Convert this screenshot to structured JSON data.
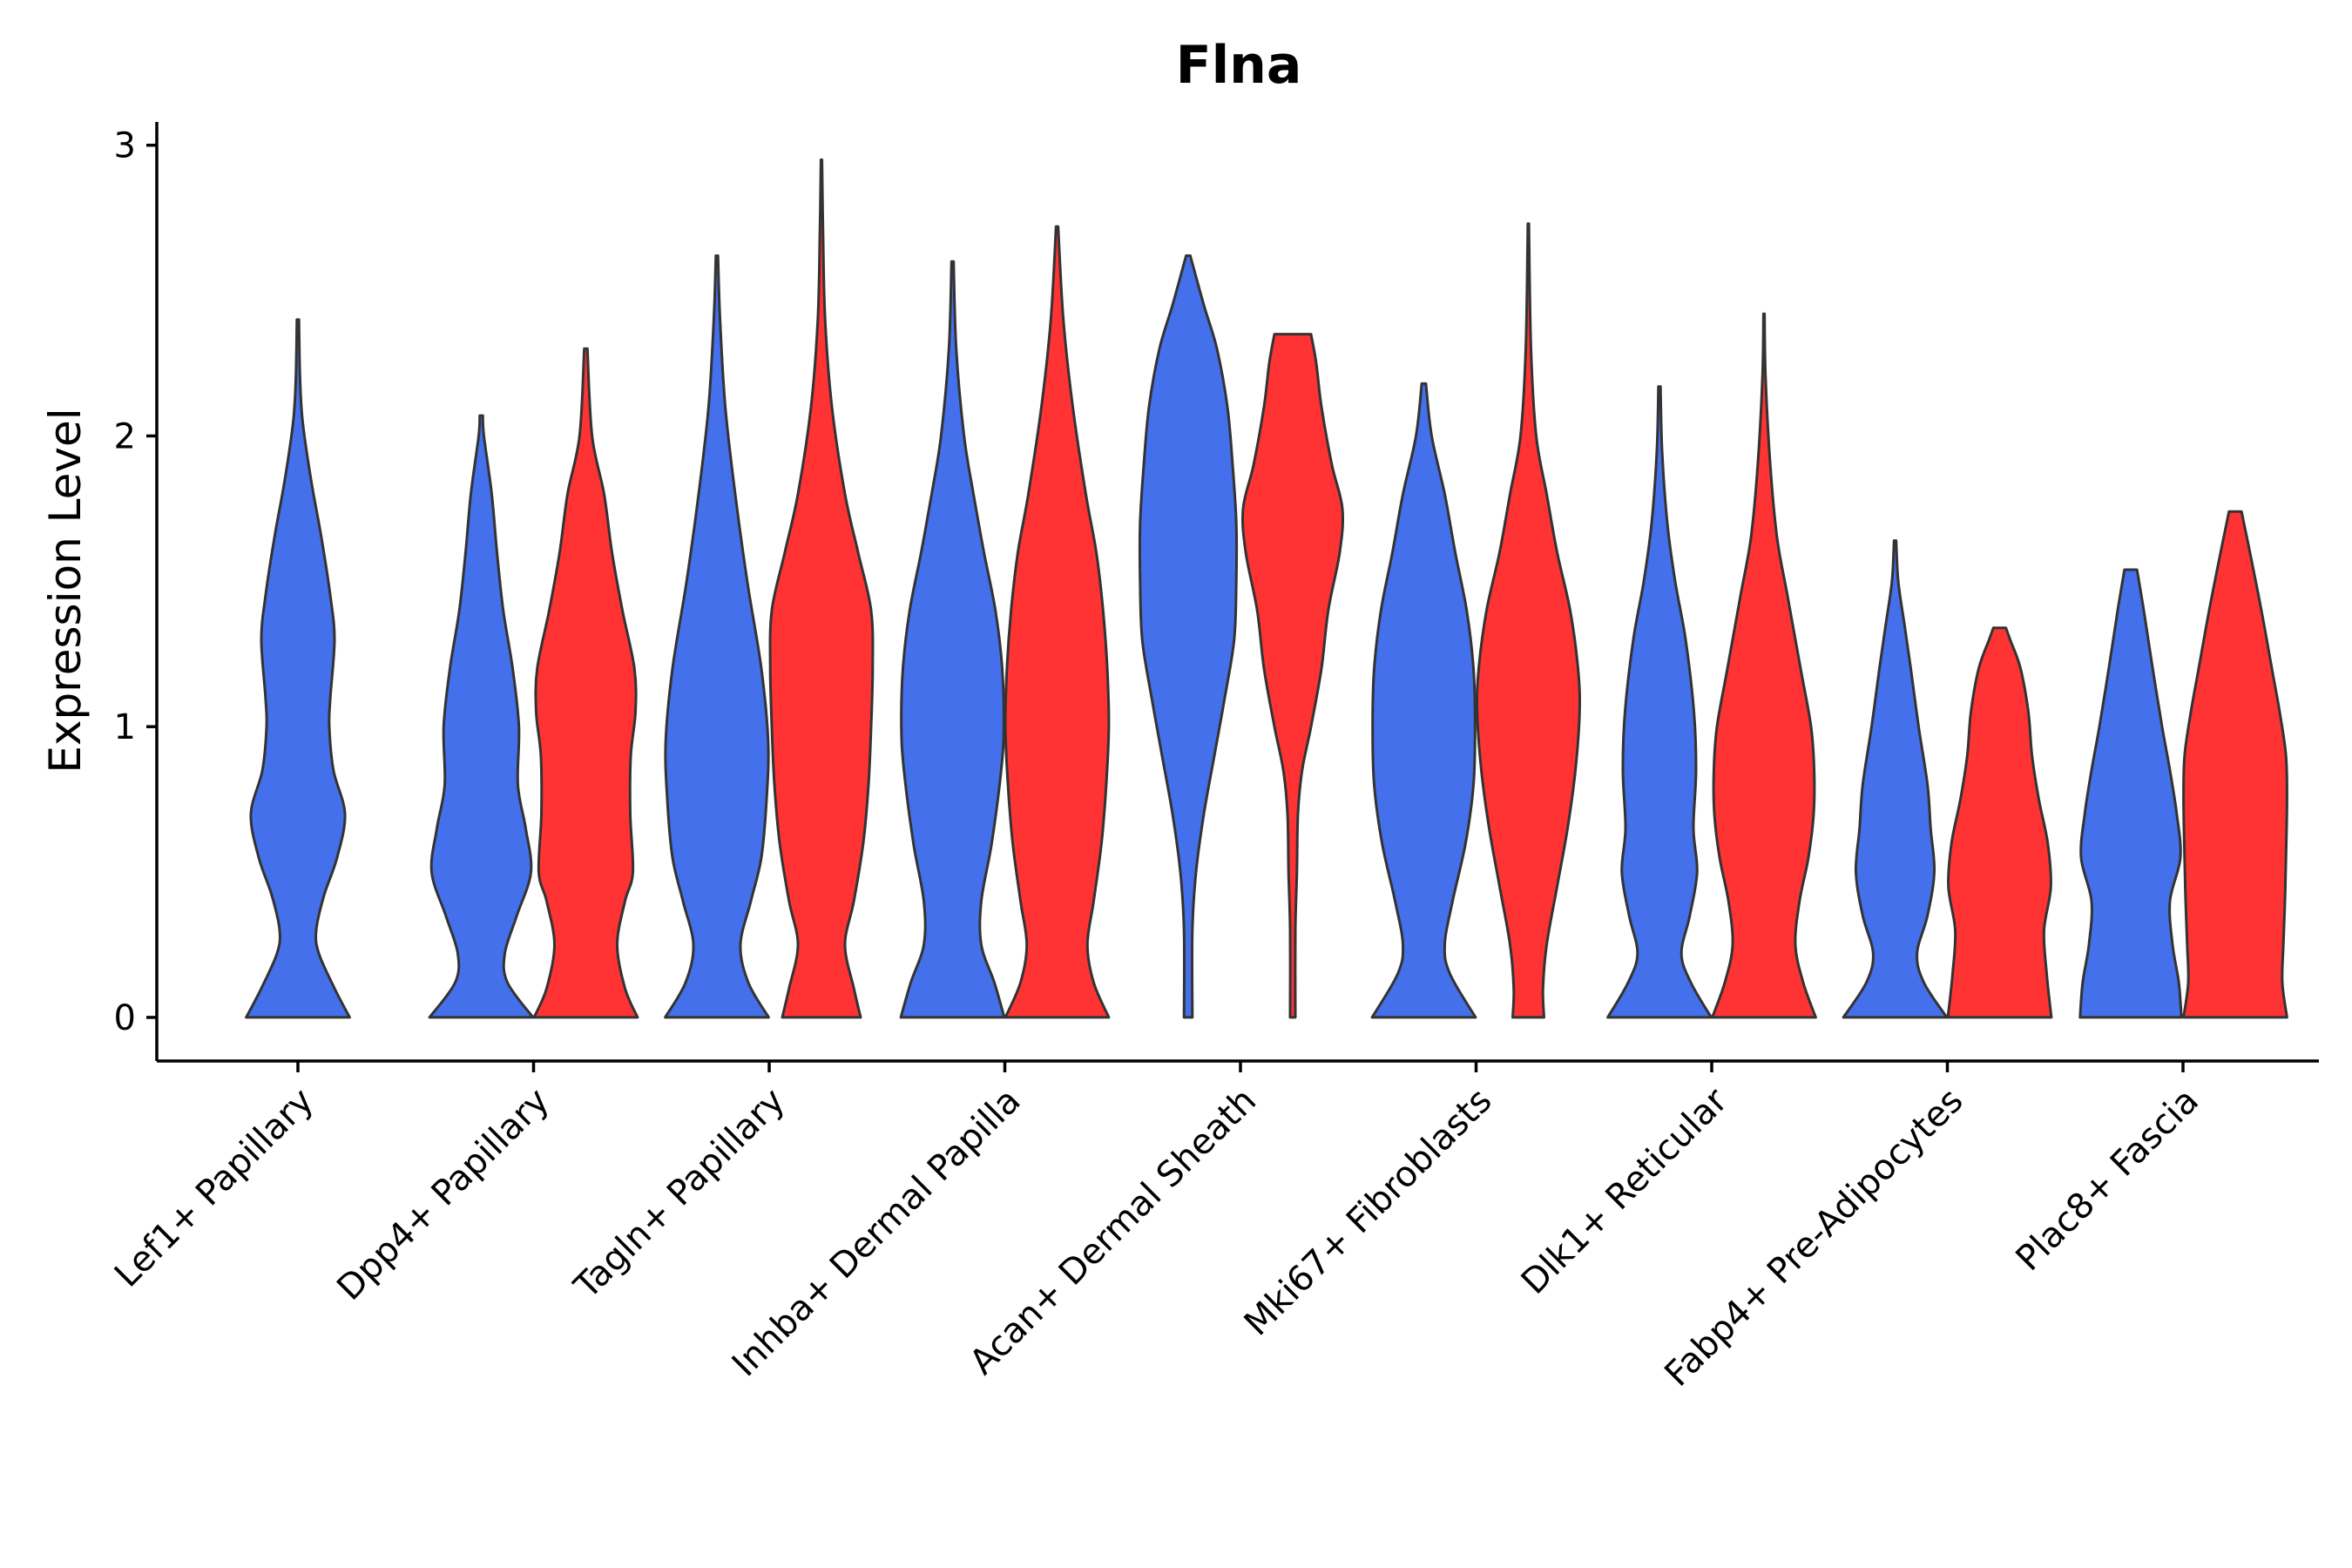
{
  "chart_data": {
    "type": "violin",
    "title": "Flna",
    "xlabel": "",
    "ylabel": "Expression Level",
    "ylim": [
      -0.15,
      3.08
    ],
    "yticks": [
      0,
      1,
      2,
      3
    ],
    "legend": "none",
    "grid": false,
    "colors": {
      "group1": "#4470EB",
      "group2": "#FF3333",
      "outline": "#333333"
    },
    "categories": [
      "Lef1+ Papillary",
      "Dpp4+ Papillary",
      "Tagln+ Papillary",
      "Inhba+ Dermal Papilla",
      "Acan+ Dermal Sheath",
      "Mki67+ Fibroblasts",
      "Dlk1+ Reticular",
      "Fabp4+ Pre-Adipocytes",
      "Plac8+ Fascia"
    ],
    "violins": [
      {
        "category": "Lef1+ Papillary",
        "group": "group1",
        "profile": [
          [
            0,
            0.99
          ],
          [
            0.1,
            0.7
          ],
          [
            0.22,
            0.4
          ],
          [
            0.3,
            0.35
          ],
          [
            0.42,
            0.5
          ],
          [
            0.55,
            0.75
          ],
          [
            0.7,
            0.9
          ],
          [
            0.85,
            0.68
          ],
          [
            1.0,
            0.6
          ],
          [
            1.1,
            0.62
          ],
          [
            1.3,
            0.7
          ],
          [
            1.45,
            0.62
          ],
          [
            1.65,
            0.45
          ],
          [
            1.85,
            0.25
          ],
          [
            2.05,
            0.09
          ],
          [
            2.2,
            0.04
          ],
          [
            2.4,
            0.02
          ]
        ]
      },
      {
        "category": "Dpp4+ Papillary",
        "group": "group1",
        "profile": [
          [
            0,
            0.99
          ],
          [
            0.12,
            0.5
          ],
          [
            0.22,
            0.45
          ],
          [
            0.35,
            0.68
          ],
          [
            0.5,
            0.95
          ],
          [
            0.65,
            0.85
          ],
          [
            0.8,
            0.7
          ],
          [
            1.0,
            0.72
          ],
          [
            1.2,
            0.6
          ],
          [
            1.4,
            0.42
          ],
          [
            1.6,
            0.3
          ],
          [
            1.8,
            0.2
          ],
          [
            2.0,
            0.05
          ],
          [
            2.07,
            0.03
          ]
        ]
      },
      {
        "category": "Dpp4+ Papillary",
        "group": "group2",
        "profile": [
          [
            0,
            0.99
          ],
          [
            0.1,
            0.75
          ],
          [
            0.25,
            0.6
          ],
          [
            0.4,
            0.75
          ],
          [
            0.5,
            0.9
          ],
          [
            0.7,
            0.85
          ],
          [
            0.9,
            0.86
          ],
          [
            1.05,
            0.95
          ],
          [
            1.2,
            0.93
          ],
          [
            1.4,
            0.7
          ],
          [
            1.6,
            0.5
          ],
          [
            1.8,
            0.35
          ],
          [
            2.0,
            0.12
          ],
          [
            2.3,
            0.03
          ]
        ]
      },
      {
        "category": "Tagln+ Papillary",
        "group": "group1",
        "profile": [
          [
            0,
            0.99
          ],
          [
            0.12,
            0.6
          ],
          [
            0.25,
            0.45
          ],
          [
            0.4,
            0.65
          ],
          [
            0.55,
            0.85
          ],
          [
            0.75,
            0.95
          ],
          [
            0.95,
            0.98
          ],
          [
            1.2,
            0.85
          ],
          [
            1.5,
            0.58
          ],
          [
            1.8,
            0.35
          ],
          [
            2.1,
            0.16
          ],
          [
            2.4,
            0.06
          ],
          [
            2.62,
            0.02
          ]
        ]
      },
      {
        "category": "Tagln+ Papillary",
        "group": "group2",
        "profile": [
          [
            0,
            0.75
          ],
          [
            0.1,
            0.62
          ],
          [
            0.25,
            0.45
          ],
          [
            0.4,
            0.62
          ],
          [
            0.6,
            0.8
          ],
          [
            0.8,
            0.9
          ],
          [
            1.0,
            0.95
          ],
          [
            1.2,
            0.98
          ],
          [
            1.4,
            0.95
          ],
          [
            1.6,
            0.7
          ],
          [
            1.8,
            0.45
          ],
          [
            2.1,
            0.2
          ],
          [
            2.4,
            0.07
          ],
          [
            2.7,
            0.03
          ],
          [
            2.95,
            0.01
          ]
        ]
      },
      {
        "category": "Inhba+ Dermal Papilla",
        "group": "group1",
        "profile": [
          [
            0,
            0.99
          ],
          [
            0.12,
            0.8
          ],
          [
            0.25,
            0.55
          ],
          [
            0.4,
            0.55
          ],
          [
            0.6,
            0.75
          ],
          [
            0.85,
            0.93
          ],
          [
            1.0,
            0.98
          ],
          [
            1.2,
            0.95
          ],
          [
            1.4,
            0.82
          ],
          [
            1.6,
            0.6
          ],
          [
            1.8,
            0.4
          ],
          [
            2.0,
            0.22
          ],
          [
            2.3,
            0.07
          ],
          [
            2.6,
            0.02
          ]
        ]
      },
      {
        "category": "Inhba+ Dermal Papilla",
        "group": "group2",
        "profile": [
          [
            0,
            0.99
          ],
          [
            0.12,
            0.7
          ],
          [
            0.25,
            0.58
          ],
          [
            0.4,
            0.7
          ],
          [
            0.6,
            0.85
          ],
          [
            0.8,
            0.94
          ],
          [
            1.0,
            0.99
          ],
          [
            1.2,
            0.96
          ],
          [
            1.4,
            0.88
          ],
          [
            1.6,
            0.75
          ],
          [
            1.8,
            0.55
          ],
          [
            2.1,
            0.3
          ],
          [
            2.4,
            0.12
          ],
          [
            2.72,
            0.02
          ]
        ]
      },
      {
        "category": "Acan+ Dermal Sheath",
        "group": "group1",
        "profile": [
          [
            0,
            0.08
          ],
          [
            0.3,
            0.08
          ],
          [
            0.5,
            0.15
          ],
          [
            0.7,
            0.3
          ],
          [
            0.9,
            0.5
          ],
          [
            1.1,
            0.7
          ],
          [
            1.3,
            0.88
          ],
          [
            1.5,
            0.92
          ],
          [
            1.7,
            0.92
          ],
          [
            1.9,
            0.85
          ],
          [
            2.1,
            0.75
          ],
          [
            2.3,
            0.55
          ],
          [
            2.45,
            0.3
          ],
          [
            2.62,
            0.04
          ]
        ]
      },
      {
        "category": "Acan+ Dermal Sheath",
        "group": "group2",
        "profile": [
          [
            0,
            0.05
          ],
          [
            0.3,
            0.05
          ],
          [
            0.5,
            0.08
          ],
          [
            0.7,
            0.1
          ],
          [
            0.85,
            0.18
          ],
          [
            1.0,
            0.35
          ],
          [
            1.2,
            0.55
          ],
          [
            1.4,
            0.68
          ],
          [
            1.6,
            0.9
          ],
          [
            1.75,
            0.95
          ],
          [
            1.9,
            0.75
          ],
          [
            2.1,
            0.55
          ],
          [
            2.25,
            0.45
          ],
          [
            2.35,
            0.35
          ]
        ]
      },
      {
        "category": "Mki67+ Fibroblasts",
        "group": "group1",
        "profile": [
          [
            0,
            0.99
          ],
          [
            0.15,
            0.5
          ],
          [
            0.25,
            0.4
          ],
          [
            0.4,
            0.55
          ],
          [
            0.6,
            0.8
          ],
          [
            0.8,
            0.95
          ],
          [
            1.0,
            0.98
          ],
          [
            1.2,
            0.95
          ],
          [
            1.4,
            0.82
          ],
          [
            1.6,
            0.6
          ],
          [
            1.8,
            0.4
          ],
          [
            2.0,
            0.15
          ],
          [
            2.18,
            0.04
          ]
        ]
      },
      {
        "category": "Mki67+ Fibroblasts",
        "group": "group2",
        "profile": [
          [
            0,
            0.3
          ],
          [
            0.1,
            0.28
          ],
          [
            0.25,
            0.35
          ],
          [
            0.45,
            0.55
          ],
          [
            0.65,
            0.75
          ],
          [
            0.85,
            0.9
          ],
          [
            1.05,
            0.98
          ],
          [
            1.2,
            0.95
          ],
          [
            1.4,
            0.8
          ],
          [
            1.6,
            0.55
          ],
          [
            1.8,
            0.35
          ],
          [
            2.0,
            0.15
          ],
          [
            2.3,
            0.05
          ],
          [
            2.73,
            0.01
          ]
        ]
      },
      {
        "category": "Dlk1+ Reticular",
        "group": "group1",
        "profile": [
          [
            0,
            0.99
          ],
          [
            0.12,
            0.6
          ],
          [
            0.22,
            0.42
          ],
          [
            0.35,
            0.58
          ],
          [
            0.5,
            0.72
          ],
          [
            0.65,
            0.65
          ],
          [
            0.85,
            0.7
          ],
          [
            1.05,
            0.66
          ],
          [
            1.3,
            0.5
          ],
          [
            1.5,
            0.3
          ],
          [
            1.7,
            0.15
          ],
          [
            1.95,
            0.05
          ],
          [
            2.17,
            0.02
          ]
        ]
      },
      {
        "category": "Dlk1+ Reticular",
        "group": "group2",
        "profile": [
          [
            0,
            0.99
          ],
          [
            0.12,
            0.75
          ],
          [
            0.25,
            0.6
          ],
          [
            0.4,
            0.68
          ],
          [
            0.55,
            0.85
          ],
          [
            0.7,
            0.95
          ],
          [
            0.85,
            0.96
          ],
          [
            1.0,
            0.9
          ],
          [
            1.2,
            0.7
          ],
          [
            1.45,
            0.45
          ],
          [
            1.65,
            0.25
          ],
          [
            1.9,
            0.12
          ],
          [
            2.2,
            0.03
          ],
          [
            2.42,
            0.01
          ]
        ]
      },
      {
        "category": "Fabp4+ Pre-Adipocytes",
        "group": "group1",
        "profile": [
          [
            0,
            0.99
          ],
          [
            0.12,
            0.55
          ],
          [
            0.22,
            0.42
          ],
          [
            0.35,
            0.62
          ],
          [
            0.5,
            0.75
          ],
          [
            0.65,
            0.68
          ],
          [
            0.8,
            0.62
          ],
          [
            1.0,
            0.45
          ],
          [
            1.2,
            0.3
          ],
          [
            1.35,
            0.18
          ],
          [
            1.5,
            0.06
          ],
          [
            1.64,
            0.02
          ]
        ]
      },
      {
        "category": "Fabp4+ Pre-Adipocytes",
        "group": "group2",
        "profile": [
          [
            0,
            0.99
          ],
          [
            0.15,
            0.9
          ],
          [
            0.3,
            0.85
          ],
          [
            0.45,
            0.98
          ],
          [
            0.6,
            0.92
          ],
          [
            0.75,
            0.75
          ],
          [
            0.9,
            0.62
          ],
          [
            1.05,
            0.55
          ],
          [
            1.2,
            0.4
          ],
          [
            1.3,
            0.2
          ],
          [
            1.34,
            0.12
          ]
        ]
      },
      {
        "category": "Plac8+ Fascia",
        "group": "group1",
        "profile": [
          [
            0,
            0.97
          ],
          [
            0.12,
            0.92
          ],
          [
            0.25,
            0.8
          ],
          [
            0.4,
            0.75
          ],
          [
            0.55,
            0.95
          ],
          [
            0.7,
            0.88
          ],
          [
            0.85,
            0.75
          ],
          [
            1.0,
            0.6
          ],
          [
            1.2,
            0.42
          ],
          [
            1.4,
            0.25
          ],
          [
            1.54,
            0.12
          ]
        ]
      },
      {
        "category": "Plac8+ Fascia",
        "group": "group2",
        "profile": [
          [
            0,
            0.99
          ],
          [
            0.12,
            0.9
          ],
          [
            0.25,
            0.92
          ],
          [
            0.4,
            0.95
          ],
          [
            0.55,
            0.97
          ],
          [
            0.75,
            0.99
          ],
          [
            0.9,
            0.97
          ],
          [
            1.05,
            0.85
          ],
          [
            1.2,
            0.7
          ],
          [
            1.4,
            0.5
          ],
          [
            1.6,
            0.28
          ],
          [
            1.74,
            0.12
          ]
        ]
      }
    ]
  }
}
